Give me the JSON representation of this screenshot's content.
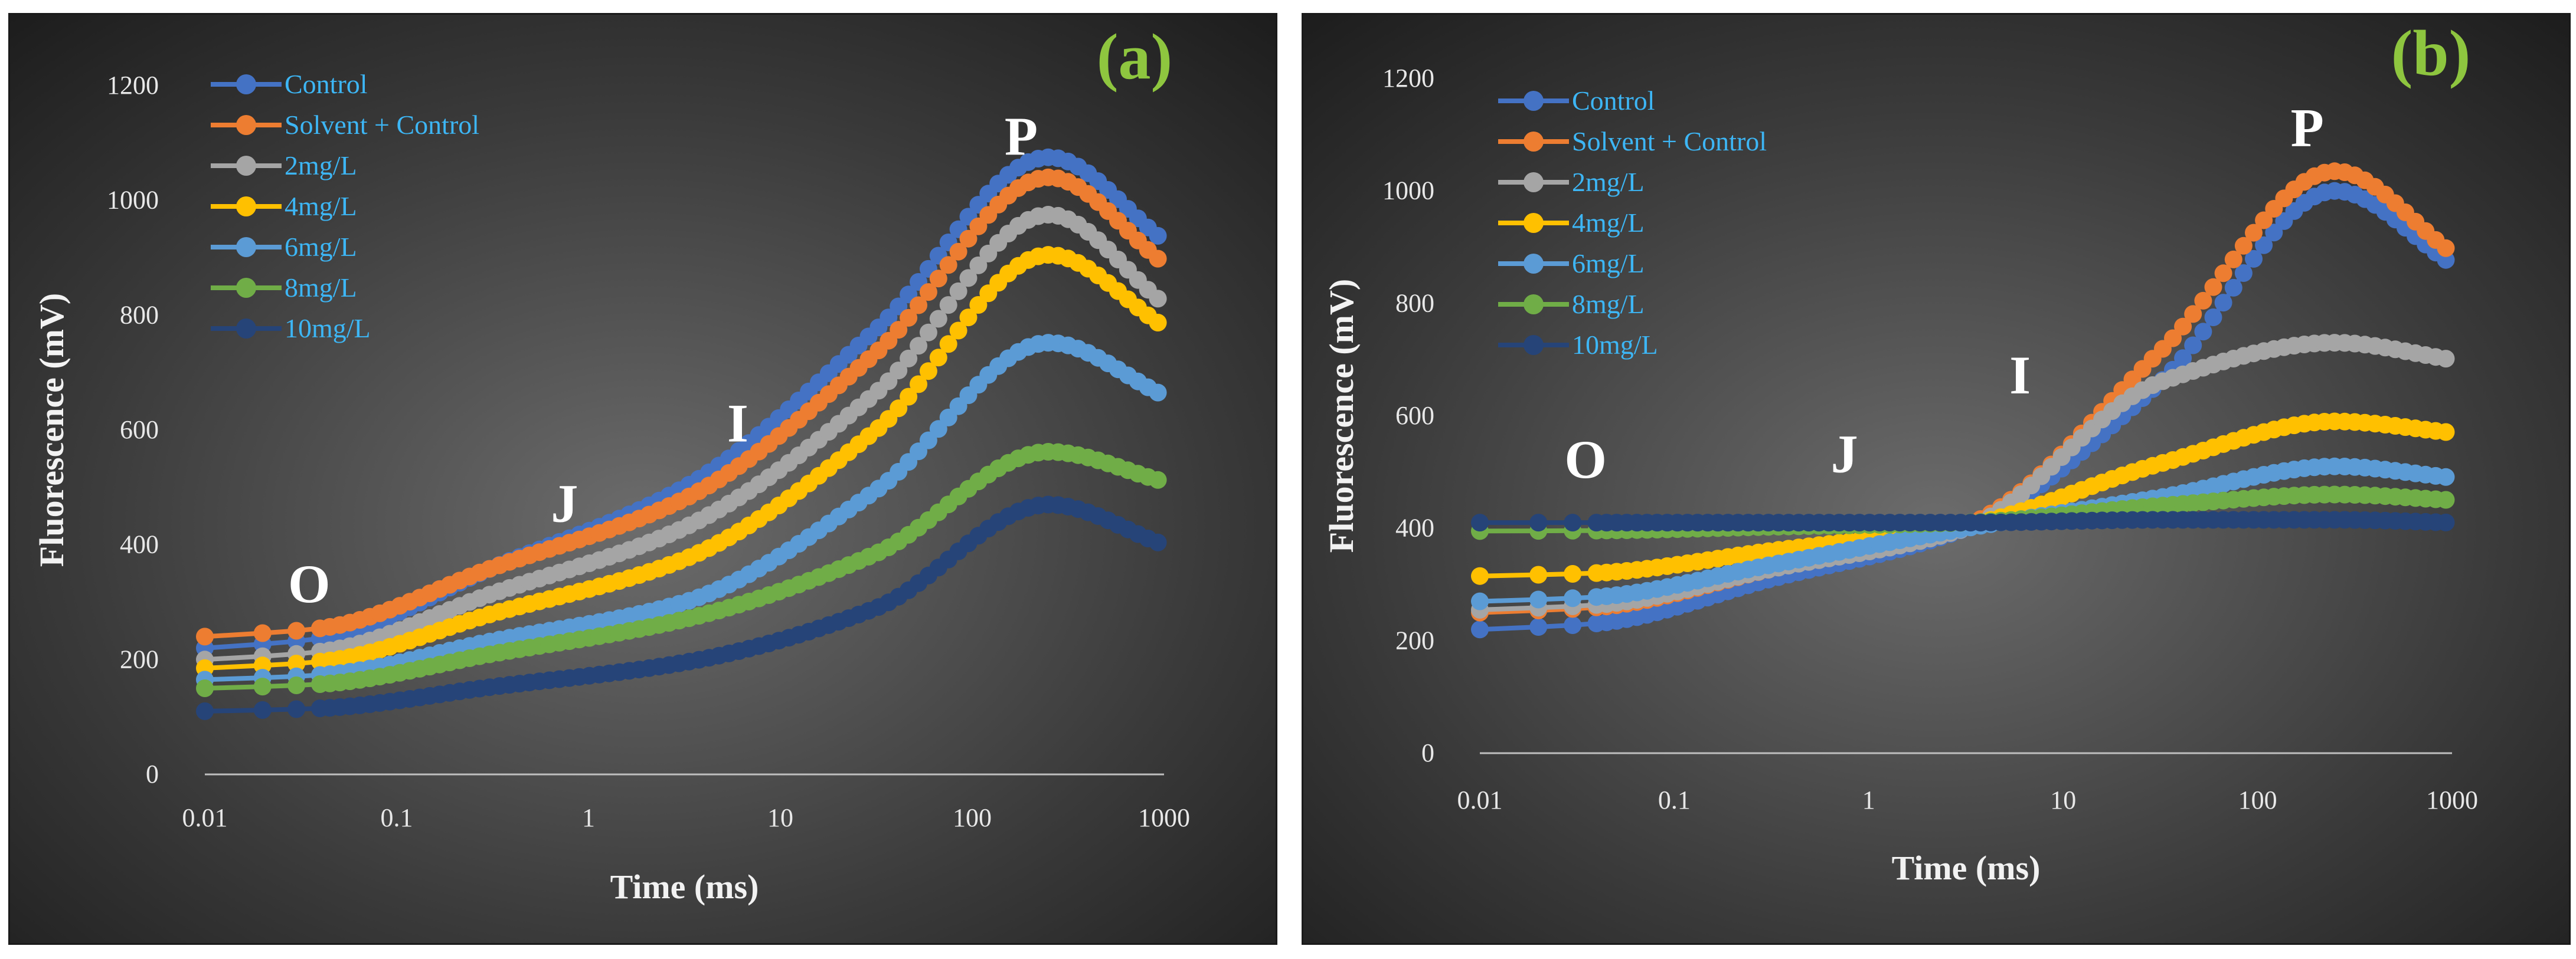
{
  "chart_data": [
    {
      "type": "line",
      "panel_label": "(a)",
      "xlabel": "Time (ms)",
      "ylabel": "Fluorescence (mV)",
      "xscale": "log",
      "xlim": [
        0.01,
        1000
      ],
      "ylim": [
        0,
        1200
      ],
      "x_ticks": [
        "0.01",
        "0.1",
        "1",
        "10",
        "100",
        "1000"
      ],
      "y_ticks": [
        "0",
        "200",
        "400",
        "600",
        "800",
        "1000",
        "1200"
      ],
      "legend_position": "top-left",
      "annotations": [
        {
          "text": "O",
          "x": 0.035,
          "y": 300
        },
        {
          "text": "J",
          "x": 0.75,
          "y": 440
        },
        {
          "text": "I",
          "x": 6,
          "y": 580
        },
        {
          "text": "P",
          "x": 180,
          "y": 1080
        }
      ],
      "series": [
        {
          "name": "Control",
          "color": "#4472c4",
          "O": 220,
          "J": 500,
          "I": 775,
          "P": 1075,
          "end": 930
        },
        {
          "name": "Solvent + Control",
          "color": "#ed7d31",
          "O": 240,
          "J": 480,
          "I": 735,
          "P": 1040,
          "end": 890
        },
        {
          "name": "2mg/L",
          "color": "#a5a5a5",
          "O": 200,
          "J": 430,
          "I": 665,
          "P": 975,
          "end": 820
        },
        {
          "name": "4mg/L",
          "color": "#ffc000",
          "O": 185,
          "J": 375,
          "I": 600,
          "P": 905,
          "end": 780
        },
        {
          "name": "6mg/L",
          "color": "#5b9bd5",
          "O": 165,
          "J": 300,
          "I": 495,
          "P": 752,
          "end": 660
        },
        {
          "name": "8mg/L",
          "color": "#70ad47",
          "O": 150,
          "J": 270,
          "I": 385,
          "P": 562,
          "end": 510
        },
        {
          "name": "10mg/L",
          "color": "#264478",
          "O": 110,
          "J": 195,
          "I": 290,
          "P": 470,
          "end": 400
        }
      ]
    },
    {
      "type": "line",
      "panel_label": "(b)",
      "xlabel": "Time (ms)",
      "ylabel": "Fluorescence (mV)",
      "xscale": "log",
      "xlim": [
        0.01,
        1000
      ],
      "ylim": [
        0,
        1200
      ],
      "x_ticks": [
        "0.01",
        "0.1",
        "1",
        "10",
        "100",
        "1000"
      ],
      "y_ticks": [
        "0",
        "200",
        "400",
        "600",
        "800",
        "1000",
        "1200"
      ],
      "legend_position": "top-left",
      "annotations": [
        {
          "text": "O",
          "x": 0.035,
          "y": 490
        },
        {
          "text": "J",
          "x": 0.75,
          "y": 500
        },
        {
          "text": "I",
          "x": 6,
          "y": 640
        },
        {
          "text": "P",
          "x": 180,
          "y": 1080
        }
      ],
      "series": [
        {
          "name": "Control",
          "color": "#4472c4",
          "O": 220,
          "J": 400,
          "I": 660,
          "P": 1000,
          "end": 870
        },
        {
          "name": "Solvent + Control",
          "color": "#ed7d31",
          "O": 250,
          "J": 405,
          "I": 715,
          "P": 1035,
          "end": 890
        },
        {
          "name": "2mg/L",
          "color": "#a5a5a5",
          "O": 255,
          "J": 400,
          "I": 660,
          "P": 730,
          "end": 700
        },
        {
          "name": "4mg/L",
          "color": "#ffc000",
          "O": 315,
          "J": 405,
          "I": 515,
          "P": 590,
          "end": 570
        },
        {
          "name": "6mg/L",
          "color": "#5b9bd5",
          "O": 270,
          "J": 400,
          "I": 455,
          "P": 510,
          "end": 490
        },
        {
          "name": "8mg/L",
          "color": "#70ad47",
          "O": 395,
          "J": 410,
          "I": 440,
          "P": 460,
          "end": 450
        },
        {
          "name": "10mg/L",
          "color": "#264478",
          "O": 410,
          "J": 410,
          "I": 415,
          "P": 415,
          "end": 410
        }
      ]
    }
  ]
}
